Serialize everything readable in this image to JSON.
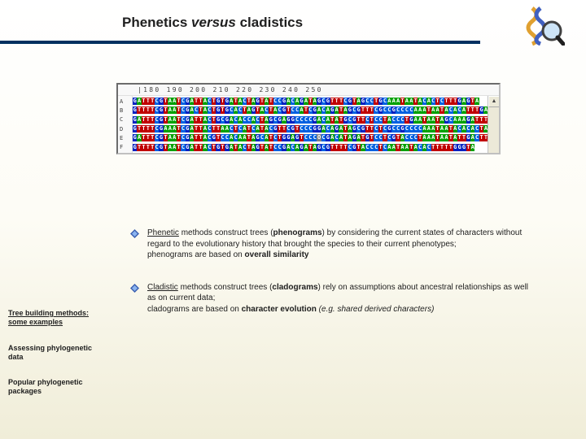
{
  "title": {
    "part1": "Phenetics ",
    "italic": "versus",
    "part2": " cladistics"
  },
  "colors": {
    "hr": "#003060",
    "bg_top": "#ffffff",
    "bg_bottom": "#f0edd8",
    "base_A": "#00a000",
    "base_T": "#c00000",
    "base_G": "#0020c0",
    "base_C": "#0060e0",
    "base_U": "#c00000"
  },
  "logo": {
    "desc": "DNA helix with magnifying glass"
  },
  "alignment": {
    "ruler_start": 180,
    "ruler_end": 250,
    "ruler_step": 10,
    "labels": [
      "A",
      "B",
      "C",
      "D",
      "E",
      "F"
    ],
    "sequences": [
      "GATTTCGTAATCGATTACTGTGATACTAGTATCCGACAGATAGCGTTTCGTAGCCTGCAAATAATACACTCTTTGAGTA",
      "GTTTTCGTAATCGACTACTGTGCACTAGTACTACGTCCATCGACAGATAGCGTTTCGCCGCCCCAAATAATACACATTTGACTA",
      "GATTTCGTAATCGATTACTGCGACACCACTAGCGAGGCCCCGACATATGCGTTCTCCTACCCTGAATAATAGCAAAGATTTGAGTA",
      "GTTTTCGAAATCGATTACTTAACTCATCATACGTTCGTCCCGGACAGATAGCGTTCTCGCCGCCCCAAATAATACACACTATTTGAGTA",
      "GATTTCGTAATCGATTACGTCCACAATAGCATCTGGAGTCCCOCGACATAGATGTCCTCGTACCCTAAATAATATTGACTTTGACTA",
      "GTTTTCGTAATCGATTACTGTGATACTAGTATCCGACAGATAGCGTTTTCGTACCCTCAATAATACACTTTTTGGGTA"
    ]
  },
  "bullets": [
    {
      "lead": "Phenetic",
      "rest": " methods construct trees (",
      "bold1": "phenograms",
      "mid1": ") by considering the current states of characters without regard to the evolutionary history that brought the species to their current phenotypes;",
      "line2a": "phenograms are based on ",
      "bold2": "overall similarity",
      "tail": ""
    },
    {
      "lead": "Cladistic",
      "rest": " methods construct trees (",
      "bold1": "cladograms",
      "mid1": ") rely on assumptions about ancestral relationships as well as on current data;",
      "line2a": "cladograms are based on ",
      "bold2": "character evolution",
      "tail": " (e.g. shared derived characters)"
    }
  ],
  "nav": [
    {
      "label": "Tree building methods: some examples",
      "underline": true
    },
    {
      "label": "Assessing phylogenetic data",
      "underline": false
    },
    {
      "label": "Popular phylogenetic packages",
      "underline": false
    }
  ],
  "bullet_icon_colors": {
    "outer": "#3a5fb0",
    "inner": "#8ab4f0"
  }
}
